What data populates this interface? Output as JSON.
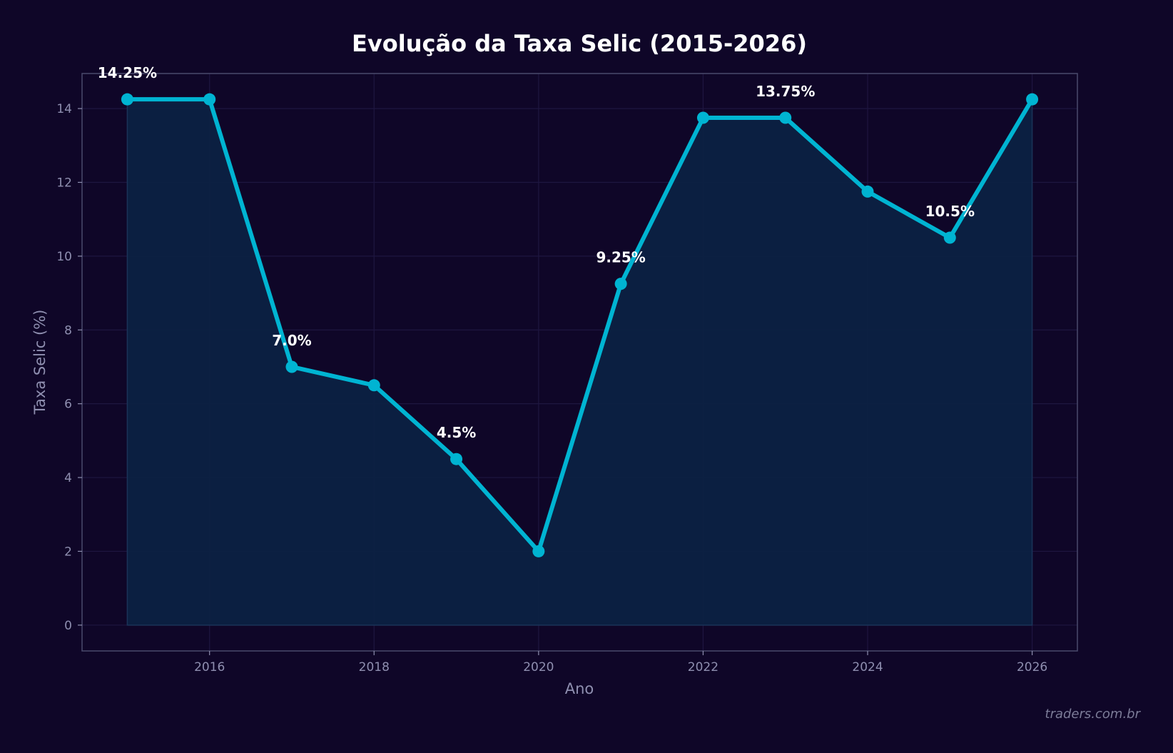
{
  "chart_data": {
    "type": "line",
    "title": "Evolução da Taxa Selic (2015-2026)",
    "xlabel": "Ano",
    "ylabel": "Taxa Selic (%)",
    "x": [
      2015,
      2016,
      2017,
      2018,
      2019,
      2020,
      2021,
      2022,
      2023,
      2024,
      2025,
      2026
    ],
    "series": [
      {
        "values": [
          14.25,
          14.25,
          7.0,
          6.5,
          4.5,
          2.0,
          9.25,
          13.75,
          13.75,
          11.75,
          10.5,
          14.25
        ]
      }
    ],
    "annotations": [
      {
        "x": 2015,
        "y": 14.25,
        "text": "14.25%"
      },
      {
        "x": 2017,
        "y": 7.0,
        "text": "7.0%"
      },
      {
        "x": 2019,
        "y": 4.5,
        "text": "4.5%"
      },
      {
        "x": 2021,
        "y": 9.25,
        "text": "9.25%"
      },
      {
        "x": 2023,
        "y": 13.75,
        "text": "13.75%"
      },
      {
        "x": 2025,
        "y": 10.5,
        "text": "10.5%"
      }
    ],
    "xticks": [
      2016,
      2018,
      2020,
      2022,
      2024,
      2026
    ],
    "yticks": [
      0,
      2,
      4,
      6,
      8,
      10,
      12,
      14
    ],
    "xlim": [
      2014.45,
      2026.55
    ],
    "ylim": [
      -0.7,
      14.95
    ],
    "grid": true,
    "fill_area": true,
    "colors": {
      "background": "#0f0628",
      "line": "#00b4d2",
      "fill": "#0c2142",
      "frame": "#4a4a6c",
      "grid": "#1e1640",
      "text": "#ffffff",
      "muted": "#8f8fb0"
    }
  },
  "watermark": "traders.com.br"
}
